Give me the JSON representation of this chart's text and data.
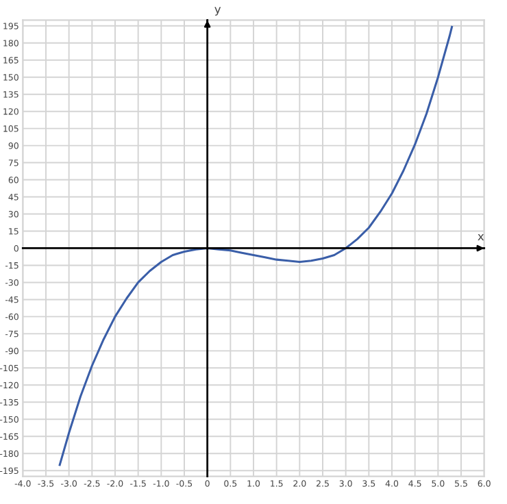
{
  "chart_data": {
    "type": "line",
    "xlabel": "x",
    "ylabel": "y",
    "x": [
      -3.2,
      -3.0,
      -2.75,
      -2.5,
      -2.25,
      -2.0,
      -1.75,
      -1.5,
      -1.25,
      -1.0,
      -0.75,
      -0.5,
      -0.25,
      0,
      0.25,
      0.5,
      0.75,
      1.0,
      1.25,
      1.5,
      1.75,
      2.0,
      2.25,
      2.5,
      2.75,
      3.0,
      3.25,
      3.5,
      3.75,
      4.0,
      4.25,
      4.5,
      4.75,
      5.0,
      5.25,
      5.3
    ],
    "series": [
      {
        "color": "#3a5ea8",
        "values": [
          -190,
          -162,
          -130,
          -103,
          -80,
          -60,
          -44,
          -30,
          -20,
          -12,
          -6,
          -3,
          -1,
          0,
          -1,
          -2,
          -4,
          -6,
          -8,
          -10,
          -11,
          -12,
          -11,
          -9,
          -6,
          0,
          8,
          18,
          32,
          48,
          68,
          91,
          118,
          150,
          186,
          194
        ]
      }
    ],
    "xlim": [
      -4,
      6
    ],
    "ylim": [
      -200,
      200
    ],
    "xticks": [
      {
        "value": -4,
        "label": "-4.0"
      },
      {
        "value": -3.5,
        "label": "-3.5"
      },
      {
        "value": -3,
        "label": "-3.0"
      },
      {
        "value": -2.5,
        "label": "-2.5"
      },
      {
        "value": -2,
        "label": "-2.0"
      },
      {
        "value": -1.5,
        "label": "-1.5"
      },
      {
        "value": -1,
        "label": "-1.0"
      },
      {
        "value": -0.5,
        "label": "-0.5"
      },
      0,
      0.5,
      {
        "value": 1,
        "label": "1.0"
      },
      1.5,
      {
        "value": 2,
        "label": "2.0"
      },
      2.5,
      {
        "value": 3,
        "label": "3.0"
      },
      3.5,
      {
        "value": 4,
        "label": "4.0"
      },
      4.5,
      {
        "value": 5,
        "label": "5.0"
      },
      5.5,
      {
        "value": 6,
        "label": "6.0"
      }
    ],
    "yticks": [
      -195,
      -180,
      -165,
      -150,
      -135,
      -120,
      -105,
      -90,
      -75,
      -60,
      -45,
      -30,
      -15,
      0,
      15,
      30,
      45,
      60,
      75,
      90,
      105,
      120,
      135,
      150,
      165,
      180,
      195
    ],
    "grid": true,
    "marker": "none",
    "line_style": "solid"
  }
}
